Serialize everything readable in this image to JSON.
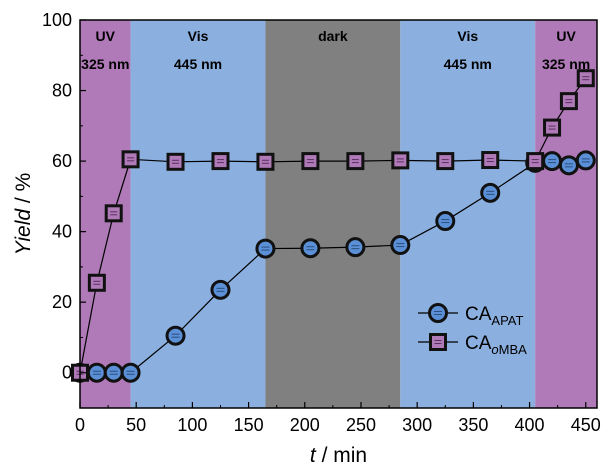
{
  "chart_data": {
    "type": "line",
    "xlabel_var": "t",
    "xlabel_unit": " / min",
    "ylabel_var": "Yield",
    "ylabel_unit": " / %",
    "xlim": [
      0,
      460
    ],
    "ylim": [
      -10,
      100
    ],
    "xticks": [
      0,
      50,
      100,
      150,
      200,
      250,
      300,
      350,
      400,
      450
    ],
    "yticks": [
      0,
      20,
      40,
      60,
      80,
      100
    ],
    "regions": [
      {
        "x0": 0,
        "x1": 45,
        "label": "UV",
        "sublabel": "325 nm",
        "color": "#b07ab8"
      },
      {
        "x0": 45,
        "x1": 165,
        "label": "Vis",
        "sublabel": "445 nm",
        "color": "#8bb0e0"
      },
      {
        "x0": 165,
        "x1": 285,
        "label": "dark",
        "sublabel": "",
        "color": "#808080"
      },
      {
        "x0": 285,
        "x1": 405,
        "label": "Vis",
        "sublabel": "445 nm",
        "color": "#8bb0e0"
      },
      {
        "x0": 405,
        "x1": 460,
        "label": "UV",
        "sublabel": "325 nm",
        "color": "#b07ab8"
      }
    ],
    "series": [
      {
        "name_main": "CA",
        "name_sub": "APAT",
        "marker": "circle",
        "fill": "#5b8fd6",
        "x": [
          0,
          15,
          30,
          45,
          85,
          125,
          165,
          205,
          245,
          285,
          325,
          365,
          405,
          420,
          435,
          450
        ],
        "y": [
          0,
          0,
          0,
          0,
          10.5,
          23.5,
          35.2,
          35.3,
          35.6,
          36.2,
          43.0,
          51.0,
          59.5,
          60.0,
          58.8,
          60.2
        ]
      },
      {
        "name_main": "CA",
        "name_sub": "oMBA",
        "marker": "square",
        "fill": "#b07ab8",
        "x": [
          0,
          15,
          30,
          45,
          85,
          125,
          165,
          205,
          245,
          285,
          325,
          365,
          405,
          420,
          435,
          450
        ],
        "y": [
          0,
          25.5,
          45.2,
          60.5,
          59.8,
          60.0,
          59.8,
          60.0,
          60.0,
          60.2,
          60.0,
          60.3,
          60.0,
          69.5,
          77.0,
          83.5
        ]
      }
    ],
    "legend_position": "lower-right"
  }
}
